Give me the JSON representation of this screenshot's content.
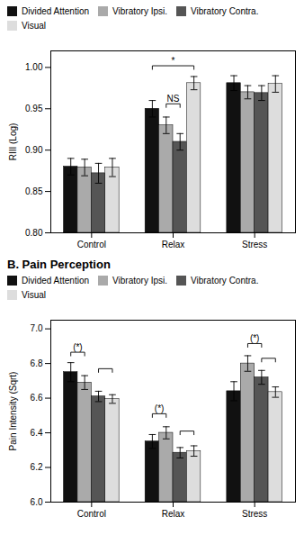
{
  "chart_data": [
    {
      "type": "bar",
      "ylabel": "RIII (Log)",
      "categories": [
        "Control",
        "Relax",
        "Stress"
      ],
      "series": [
        {
          "name": "Divided Attention",
          "color": "#111111",
          "values": [
            0.88,
            0.95,
            0.981
          ],
          "errors": [
            0.01,
            0.01,
            0.009
          ]
        },
        {
          "name": "Vibratory Ipsi.",
          "color": "#aaaaaa",
          "values": [
            0.879,
            0.93,
            0.97
          ],
          "errors": [
            0.01,
            0.01,
            0.008
          ]
        },
        {
          "name": "Vibratory Contra.",
          "color": "#555555",
          "values": [
            0.872,
            0.91,
            0.969
          ],
          "errors": [
            0.012,
            0.01,
            0.009
          ]
        },
        {
          "name": "Visual",
          "color": "#dddddd",
          "values": [
            0.879,
            0.981,
            0.98
          ],
          "errors": [
            0.011,
            0.008,
            0.01
          ]
        }
      ],
      "ylim": [
        0.8,
        1.02
      ],
      "yticks": [
        {
          "value": 0.8,
          "label": "0.80"
        },
        0.85,
        {
          "value": 0.9,
          "label": "0.90"
        },
        0.95,
        {
          "value": 1.0,
          "label": "1.00"
        }
      ],
      "annotations": [
        {
          "text": "*",
          "category": "Relax",
          "from": "Divided Attention",
          "to": "Visual",
          "y": 1.002
        },
        {
          "text": "NS",
          "category": "Relax",
          "from": "Vibratory Ipsi.",
          "to": "Vibratory Contra.",
          "y": 0.956
        }
      ],
      "grid": false,
      "legend": "upper left"
    },
    {
      "type": "bar",
      "title": "B. Pain Perception",
      "ylabel": "Pain Intensity (Sqrt)",
      "categories": [
        "Control",
        "Relax",
        "Stress"
      ],
      "series": [
        {
          "name": "Divided Attention",
          "color": "#111111",
          "values": [
            6.75,
            6.35,
            6.64
          ],
          "errors": [
            0.055,
            0.04,
            0.055
          ]
        },
        {
          "name": "Vibratory Ipsi.",
          "color": "#aaaaaa",
          "values": [
            6.69,
            6.4,
            6.8
          ],
          "errors": [
            0.04,
            0.035,
            0.045
          ]
        },
        {
          "name": "Vibratory Contra.",
          "color": "#555555",
          "values": [
            6.61,
            6.285,
            6.72
          ],
          "errors": [
            0.03,
            0.03,
            0.04
          ]
        },
        {
          "name": "Visual",
          "color": "#dddddd",
          "values": [
            6.595,
            6.295,
            6.635
          ],
          "errors": [
            0.025,
            0.03,
            0.03
          ]
        }
      ],
      "ylim": [
        6.0,
        7.05
      ],
      "yticks": [
        {
          "value": 6.0,
          "label": "6.0"
        },
        6.2,
        6.4,
        6.6,
        6.8,
        {
          "value": 7.0,
          "label": "7.0"
        }
      ],
      "annotations": [
        {
          "text": "(*)",
          "category": "Control",
          "from": "Divided Attention",
          "to": "Vibratory Ipsi.",
          "y": 6.865
        },
        {
          "category": "Control",
          "from": "Vibratory Contra.",
          "to": "Visual",
          "y": 6.77
        },
        {
          "text": "(*)",
          "category": "Relax",
          "from": "Divided Attention",
          "to": "Vibratory Ipsi.",
          "y": 6.51
        },
        {
          "category": "Relax",
          "from": "Vibratory Contra.",
          "to": "Visual",
          "y": 6.41
        },
        {
          "text": "(*)",
          "category": "Stress",
          "from": "Vibratory Ipsi.",
          "to": "Vibratory Contra.",
          "y": 6.915
        },
        {
          "category": "Stress",
          "from": "Vibratory Contra.",
          "to": "Visual",
          "y": 6.83
        }
      ],
      "grid": false,
      "legend": "upper left"
    }
  ]
}
